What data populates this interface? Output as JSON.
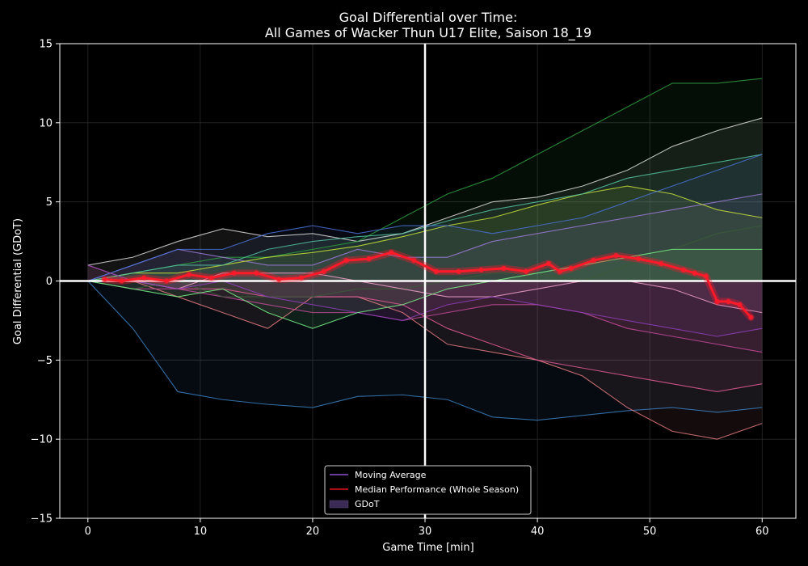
{
  "chart_data": {
    "type": "line",
    "title_line1": "Goal Differential over Time:",
    "title_line2": "All Games of Wacker Thun U17 Elite, Saison 18_19",
    "xlabel": "Game Time [min]",
    "ylabel": "Goal Differential (GDoT)",
    "xlim": [
      -2.5,
      63
    ],
    "ylim": [
      -15,
      15
    ],
    "xticks": [
      0,
      10,
      20,
      30,
      40,
      50,
      60
    ],
    "yticks": [
      -15,
      -10,
      -5,
      0,
      5,
      10,
      15
    ],
    "xtick_labels": [
      "0",
      "10",
      "20",
      "30",
      "40",
      "50",
      "60"
    ],
    "ytick_labels": [
      "−15",
      "−10",
      "−5",
      "0",
      "5",
      "10",
      "15"
    ],
    "grid": true,
    "reference_lines": {
      "x": 30,
      "y": 0
    },
    "legend": {
      "placement": "bottom-center",
      "entries": [
        {
          "label": "Moving Average",
          "color": "#8a4fd0",
          "kind": "line"
        },
        {
          "label": "Median Performance (Whole Season)",
          "color": "#e8121c",
          "kind": "line"
        },
        {
          "label": "GDoT",
          "color": "#3a2a55",
          "kind": "patch"
        }
      ]
    },
    "median_series": {
      "name": "Median Performance (Whole Season)",
      "color": "#ff1a2a",
      "x": [
        1.5,
        3,
        5,
        7,
        9,
        11,
        13,
        15,
        17,
        19,
        21,
        23,
        25,
        27,
        29,
        31,
        33,
        35,
        37,
        39,
        41,
        42,
        43,
        45,
        47,
        49,
        51,
        53,
        54,
        55,
        56,
        57,
        58,
        59
      ],
      "y": [
        0.1,
        0.0,
        0.2,
        0.0,
        0.4,
        0.2,
        0.5,
        0.5,
        0.1,
        0.2,
        0.6,
        1.3,
        1.4,
        1.8,
        1.3,
        0.6,
        0.6,
        0.7,
        0.8,
        0.6,
        1.1,
        0.6,
        0.8,
        1.3,
        1.6,
        1.4,
        1.1,
        0.7,
        0.5,
        0.3,
        -1.3,
        -1.3,
        -1.5,
        -2.3
      ]
    },
    "series": [
      {
        "color": "#3a7fc0",
        "x": [
          0,
          4,
          8,
          12,
          16,
          20,
          24,
          28,
          32,
          36,
          40,
          44,
          48,
          52,
          56,
          60
        ],
        "y": [
          0,
          -3,
          -7,
          -7.5,
          -7.8,
          -8.0,
          -7.3,
          -7.2,
          -7.5,
          -8.6,
          -8.8,
          -8.5,
          -8.2,
          -8.0,
          -8.3,
          -8.0
        ]
      },
      {
        "color": "#e17a80",
        "x": [
          0,
          4,
          8,
          12,
          16,
          20,
          24,
          28,
          32,
          36,
          40,
          44,
          48,
          52,
          56,
          60
        ],
        "y": [
          1,
          0,
          -1,
          -2,
          -3,
          -1,
          -1,
          -2,
          -4,
          -4.5,
          -5,
          -6,
          -8,
          -9.5,
          -10,
          -9
        ]
      },
      {
        "color": "#d8d8d8",
        "x": [
          0,
          4,
          8,
          12,
          16,
          20,
          24,
          28,
          32,
          36,
          40,
          44,
          48,
          52,
          56,
          60
        ],
        "y": [
          1,
          1.5,
          2.5,
          3.3,
          2.8,
          3,
          2.5,
          3,
          4,
          5,
          5.3,
          6,
          7,
          8.5,
          9.5,
          10.3
        ]
      },
      {
        "color": "#2f9e3f",
        "x": [
          0,
          4,
          8,
          12,
          16,
          20,
          24,
          28,
          32,
          36,
          40,
          44,
          48,
          52,
          56,
          60
        ],
        "y": [
          0,
          0.5,
          1,
          1.5,
          1.5,
          2,
          2.5,
          4,
          5.5,
          6.5,
          8,
          9.5,
          11,
          12.5,
          12.5,
          12.8
        ]
      },
      {
        "color": "#c34a9a",
        "x": [
          0,
          4,
          8,
          12,
          16,
          20,
          24,
          28,
          32,
          36,
          40,
          44,
          48,
          52,
          56,
          60
        ],
        "y": [
          0,
          -0.5,
          -0.5,
          -1,
          -1.5,
          -2,
          -2,
          -2.5,
          -2,
          -1.5,
          -1.5,
          -2,
          -3,
          -3.5,
          -4,
          -4.5
        ]
      },
      {
        "color": "#9b7bd8",
        "x": [
          0,
          4,
          8,
          12,
          16,
          20,
          24,
          28,
          32,
          36,
          40,
          44,
          48,
          52,
          56,
          60
        ],
        "y": [
          0,
          1,
          2,
          1.5,
          1,
          1,
          2,
          1.5,
          1.5,
          2.5,
          3,
          3.5,
          4,
          4.5,
          5,
          5.5
        ]
      },
      {
        "color": "#c6e03a",
        "x": [
          0,
          4,
          8,
          12,
          16,
          20,
          24,
          28,
          32,
          36,
          40,
          44,
          48,
          52,
          56,
          60
        ],
        "y": [
          0,
          0.5,
          0.5,
          1,
          1.5,
          1.8,
          2.2,
          2.8,
          3.5,
          4,
          4.8,
          5.5,
          6,
          5.5,
          4.5,
          4
        ]
      },
      {
        "color": "#e05a95",
        "x": [
          0,
          4,
          8,
          12,
          16,
          20,
          24,
          28,
          32,
          36,
          40,
          44,
          48,
          52,
          56,
          60
        ],
        "y": [
          0,
          0,
          -0.5,
          -0.5,
          -1,
          -1,
          -1,
          -1.5,
          -3,
          -4,
          -5,
          -5.5,
          -6,
          -6.5,
          -7,
          -6.5
        ]
      },
      {
        "color": "#55c0a0",
        "x": [
          0,
          4,
          8,
          12,
          16,
          20,
          24,
          28,
          32,
          36,
          40,
          44,
          48,
          52,
          56,
          60
        ],
        "y": [
          0,
          0.5,
          1,
          1,
          2,
          2.5,
          2.8,
          3,
          3.8,
          4.5,
          5,
          5.5,
          6.5,
          7,
          7.5,
          8
        ]
      },
      {
        "color": "#4a72d8",
        "x": [
          0,
          4,
          8,
          12,
          16,
          20,
          24,
          28,
          32,
          36,
          40,
          44,
          48,
          52,
          56,
          60
        ],
        "y": [
          0,
          1,
          2,
          2,
          3,
          3.5,
          3,
          3.5,
          3.5,
          3,
          3.5,
          4,
          5,
          6,
          7,
          8
        ]
      },
      {
        "color": "#3a5a3a",
        "x": [
          0,
          4,
          8,
          12,
          16,
          20,
          24,
          28,
          32,
          36,
          40,
          44,
          48,
          52,
          56,
          60
        ],
        "y": [
          0,
          -0.5,
          0,
          -1,
          -1,
          -1,
          -0.5,
          -0.5,
          0,
          0.5,
          0.5,
          0,
          1,
          2,
          3,
          3.5
        ]
      },
      {
        "color": "#f0a0c8",
        "x": [
          0,
          4,
          8,
          12,
          16,
          20,
          24,
          28,
          32,
          36,
          40,
          44,
          48,
          52,
          56,
          60
        ],
        "y": [
          0,
          0,
          -0.5,
          0.5,
          0.5,
          0.5,
          0,
          -0.5,
          -1,
          -1,
          -0.5,
          0,
          0,
          -0.5,
          -1.5,
          -2
        ]
      },
      {
        "color": "#8c3fb8",
        "x": [
          0,
          4,
          8,
          12,
          16,
          20,
          24,
          28,
          32,
          36,
          40,
          44,
          48,
          52,
          56,
          60
        ],
        "y": [
          1,
          0,
          -0.5,
          0,
          -1,
          -1.5,
          -2,
          -2.5,
          -1.5,
          -1,
          -1.5,
          -2,
          -2.5,
          -3,
          -3.5,
          -3
        ]
      },
      {
        "color": "#7af08a",
        "x": [
          0,
          4,
          8,
          12,
          16,
          20,
          24,
          28,
          32,
          36,
          40,
          44,
          48,
          52,
          56,
          60
        ],
        "y": [
          0,
          -0.5,
          -1,
          -0.5,
          -2,
          -3,
          -2,
          -1.5,
          -0.5,
          0,
          0.5,
          1,
          1.5,
          2,
          2,
          2
        ]
      }
    ]
  }
}
